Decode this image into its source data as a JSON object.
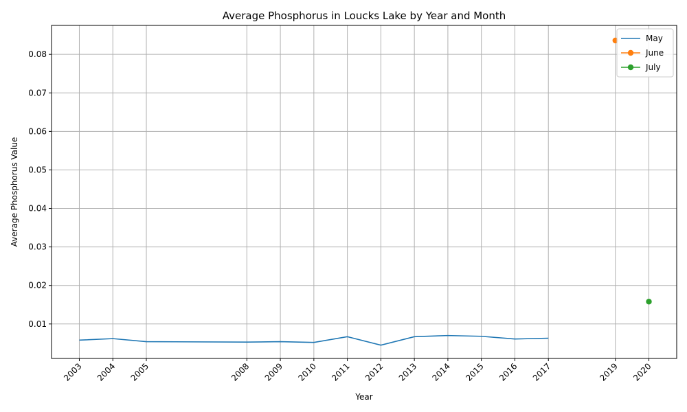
{
  "chart_data": {
    "type": "line",
    "title": "Average Phosphorus in Loucks Lake by Year and Month",
    "xlabel": "Year",
    "ylabel": "Average Phosphorus Value",
    "xlim": [
      2002.17,
      2020.83
    ],
    "ylim": [
      0.00105,
      0.08752
    ],
    "x_ticks": [
      2003,
      2004,
      2005,
      2008,
      2009,
      2010,
      2011,
      2012,
      2013,
      2014,
      2015,
      2016,
      2017,
      2019,
      2020
    ],
    "y_ticks": [
      0.01,
      0.02,
      0.03,
      0.04,
      0.05,
      0.06,
      0.07,
      0.08
    ],
    "y_tick_labels": [
      "0.01",
      "0.02",
      "0.03",
      "0.04",
      "0.05",
      "0.06",
      "0.07",
      "0.08"
    ],
    "grid": true,
    "legend_position": "top-right",
    "series": [
      {
        "name": "May",
        "color": "#1f77b4",
        "marker": false,
        "x": [
          2003,
          2004,
          2005,
          2008,
          2009,
          2010,
          2011,
          2012,
          2013,
          2014,
          2015,
          2016,
          2017
        ],
        "y": [
          0.0058,
          0.0062,
          0.0054,
          0.0053,
          0.0054,
          0.0052,
          0.0067,
          0.0045,
          0.0067,
          0.007,
          0.0068,
          0.0061,
          0.0063
        ]
      },
      {
        "name": "June",
        "color": "#ff7f0e",
        "marker": true,
        "x": [
          2019
        ],
        "y": [
          0.0836
        ]
      },
      {
        "name": "July",
        "color": "#2ca02c",
        "marker": true,
        "x": [
          2020
        ],
        "y": [
          0.0158
        ]
      }
    ]
  }
}
